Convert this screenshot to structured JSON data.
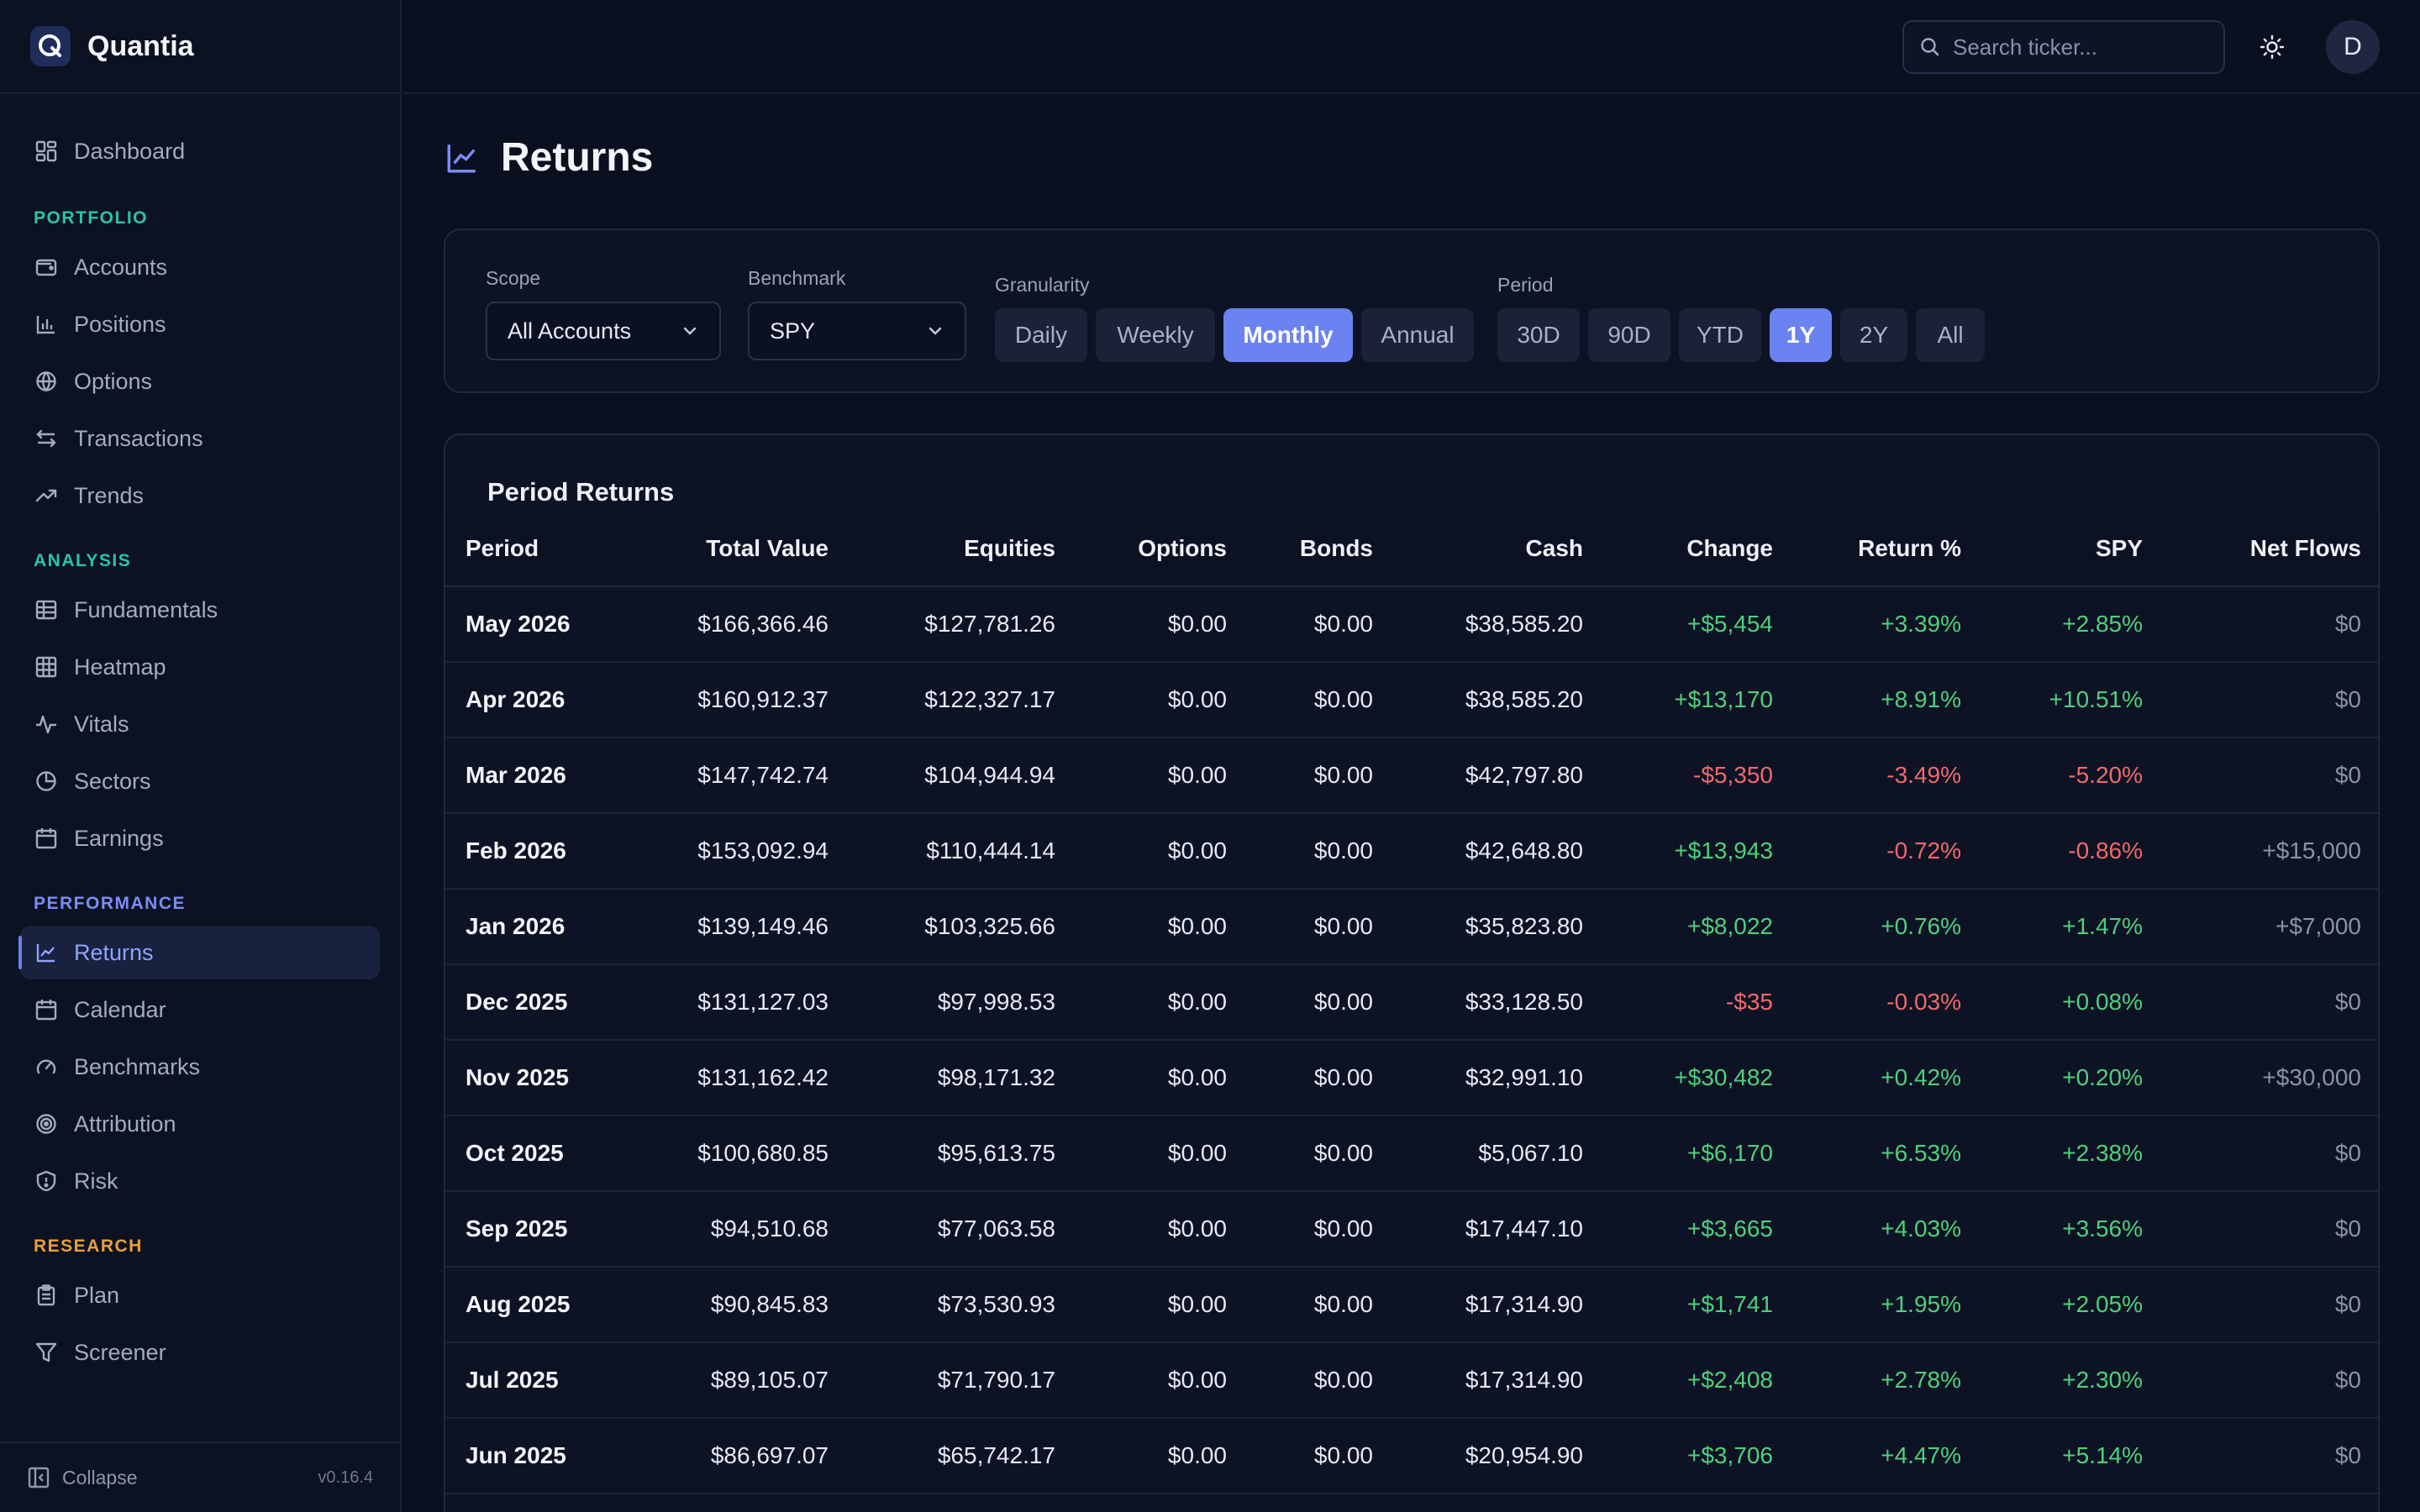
{
  "app": {
    "name": "Quantia",
    "version": "v0.16.4",
    "collapse_label": "Collapse"
  },
  "colors": {
    "accent": "#6b83f0",
    "positive": "#4fd07a",
    "negative": "#f06a6a",
    "portfolio_label": "#2bc4a8",
    "analysis_label": "#2bc4a8",
    "performance_label": "#7b8cf5",
    "research_label": "#e8a13a"
  },
  "sidebar": {
    "top_item": {
      "label": "Dashboard",
      "icon": "dashboard-icon"
    },
    "sections": [
      {
        "label": "PORTFOLIO",
        "items": [
          {
            "label": "Accounts",
            "icon": "wallet-icon"
          },
          {
            "label": "Positions",
            "icon": "bar-chart-icon"
          },
          {
            "label": "Options",
            "icon": "globe-icon"
          },
          {
            "label": "Transactions",
            "icon": "arrows-swap-icon"
          },
          {
            "label": "Trends",
            "icon": "trend-up-icon"
          }
        ]
      },
      {
        "label": "ANALYSIS",
        "items": [
          {
            "label": "Fundamentals",
            "icon": "table-icon"
          },
          {
            "label": "Heatmap",
            "icon": "grid-icon"
          },
          {
            "label": "Vitals",
            "icon": "pulse-icon"
          },
          {
            "label": "Sectors",
            "icon": "pie-chart-icon"
          },
          {
            "label": "Earnings",
            "icon": "calendar-icon"
          }
        ]
      },
      {
        "label": "PERFORMANCE",
        "items": [
          {
            "label": "Returns",
            "icon": "line-chart-icon",
            "active": true
          },
          {
            "label": "Calendar",
            "icon": "calendar-icon"
          },
          {
            "label": "Benchmarks",
            "icon": "gauge-icon"
          },
          {
            "label": "Attribution",
            "icon": "target-icon"
          },
          {
            "label": "Risk",
            "icon": "shield-icon"
          }
        ]
      },
      {
        "label": "RESEARCH",
        "items": [
          {
            "label": "Plan",
            "icon": "clipboard-icon"
          },
          {
            "label": "Screener",
            "icon": "filter-icon"
          }
        ]
      }
    ]
  },
  "topbar": {
    "search_placeholder": "Search ticker...",
    "theme_icon": "sun-icon",
    "avatar_initial": "D"
  },
  "page": {
    "title": "Returns",
    "title_icon": "line-chart-icon"
  },
  "filters": {
    "scope": {
      "label": "Scope",
      "value": "All Accounts"
    },
    "benchmark": {
      "label": "Benchmark",
      "value": "SPY"
    },
    "granularity": {
      "label": "Granularity",
      "options": [
        "Daily",
        "Weekly",
        "Monthly",
        "Annual"
      ],
      "selected": "Monthly"
    },
    "period": {
      "label": "Period",
      "options": [
        "30D",
        "90D",
        "YTD",
        "1Y",
        "2Y",
        "All"
      ],
      "selected": "1Y"
    }
  },
  "table": {
    "title": "Period Returns",
    "columns": [
      "Period",
      "Total Value",
      "Equities",
      "Options",
      "Bonds",
      "Cash",
      "Change",
      "Return %",
      "SPY",
      "Net Flows"
    ],
    "rows": [
      [
        "May 2026",
        "$166,366.46",
        "$127,781.26",
        "$0.00",
        "$0.00",
        "$38,585.20",
        "+$5,454",
        "+3.39%",
        "+2.85%",
        "$0"
      ],
      [
        "Apr 2026",
        "$160,912.37",
        "$122,327.17",
        "$0.00",
        "$0.00",
        "$38,585.20",
        "+$13,170",
        "+8.91%",
        "+10.51%",
        "$0"
      ],
      [
        "Mar 2026",
        "$147,742.74",
        "$104,944.94",
        "$0.00",
        "$0.00",
        "$42,797.80",
        "-$5,350",
        "-3.49%",
        "-5.20%",
        "$0"
      ],
      [
        "Feb 2026",
        "$153,092.94",
        "$110,444.14",
        "$0.00",
        "$0.00",
        "$42,648.80",
        "+$13,943",
        "-0.72%",
        "-0.86%",
        "+$15,000"
      ],
      [
        "Jan 2026",
        "$139,149.46",
        "$103,325.66",
        "$0.00",
        "$0.00",
        "$35,823.80",
        "+$8,022",
        "+0.76%",
        "+1.47%",
        "+$7,000"
      ],
      [
        "Dec 2025",
        "$131,127.03",
        "$97,998.53",
        "$0.00",
        "$0.00",
        "$33,128.50",
        "-$35",
        "-0.03%",
        "+0.08%",
        "$0"
      ],
      [
        "Nov 2025",
        "$131,162.42",
        "$98,171.32",
        "$0.00",
        "$0.00",
        "$32,991.10",
        "+$30,482",
        "+0.42%",
        "+0.20%",
        "+$30,000"
      ],
      [
        "Oct 2025",
        "$100,680.85",
        "$95,613.75",
        "$0.00",
        "$0.00",
        "$5,067.10",
        "+$6,170",
        "+6.53%",
        "+2.38%",
        "$0"
      ],
      [
        "Sep 2025",
        "$94,510.68",
        "$77,063.58",
        "$0.00",
        "$0.00",
        "$17,447.10",
        "+$3,665",
        "+4.03%",
        "+3.56%",
        "$0"
      ],
      [
        "Aug 2025",
        "$90,845.83",
        "$73,530.93",
        "$0.00",
        "$0.00",
        "$17,314.90",
        "+$1,741",
        "+1.95%",
        "+2.05%",
        "$0"
      ],
      [
        "Jul 2025",
        "$89,105.07",
        "$71,790.17",
        "$0.00",
        "$0.00",
        "$17,314.90",
        "+$2,408",
        "+2.78%",
        "+2.30%",
        "$0"
      ],
      [
        "Jun 2025",
        "$86,697.07",
        "$65,742.17",
        "$0.00",
        "$0.00",
        "$20,954.90",
        "+$3,706",
        "+4.47%",
        "+5.14%",
        "$0"
      ]
    ]
  }
}
